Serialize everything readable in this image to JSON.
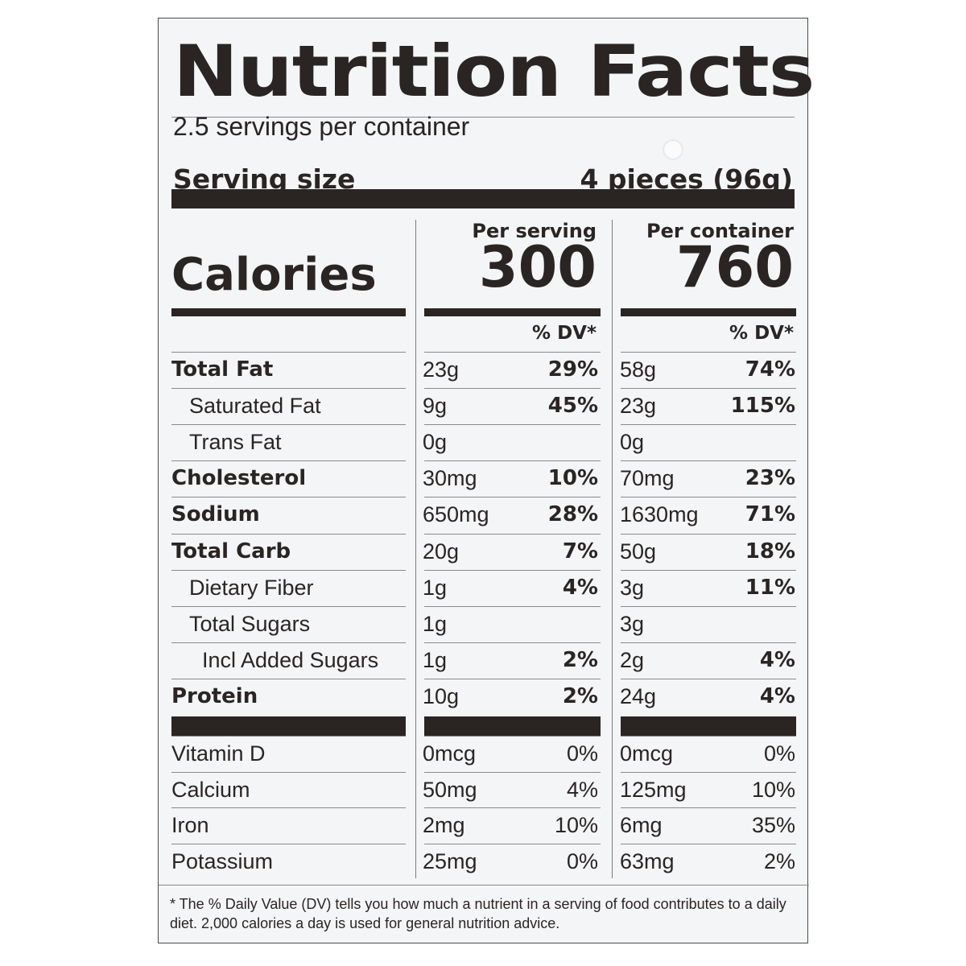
{
  "title": "Nutrition Facts",
  "servings_per_container": "2.5 servings per container",
  "serving_size_label": "Serving size",
  "serving_size_value": "4 pieces (96g)",
  "calories_label": "Calories",
  "col1": {
    "header": "Per serving",
    "calories": "300",
    "dv_header": "% DV*"
  },
  "col2": {
    "header": "Per container",
    "calories": "760",
    "dv_header": "% DV*"
  },
  "nutrients": [
    {
      "name": "Total Fat",
      "style": "bold",
      "indent": 0,
      "amt1": "23g",
      "pct1": "29%",
      "amt2": "58g",
      "pct2": "74%"
    },
    {
      "name": "Saturated Fat",
      "style": "regular",
      "indent": 1,
      "amt1": "9g",
      "pct1": "45%",
      "amt2": "23g",
      "pct2": "115%"
    },
    {
      "name": "Trans Fat",
      "style": "regular",
      "indent": 1,
      "amt1": "0g",
      "pct1": "",
      "amt2": "0g",
      "pct2": ""
    },
    {
      "name": "Cholesterol",
      "style": "bold",
      "indent": 0,
      "amt1": "30mg",
      "pct1": "10%",
      "amt2": "70mg",
      "pct2": "23%"
    },
    {
      "name": "Sodium",
      "style": "bold",
      "indent": 0,
      "amt1": "650mg",
      "pct1": "28%",
      "amt2": "1630mg",
      "pct2": "71%"
    },
    {
      "name": "Total Carb",
      "style": "bold",
      "indent": 0,
      "amt1": "20g",
      "pct1": "7%",
      "amt2": "50g",
      "pct2": "18%"
    },
    {
      "name": "Dietary Fiber",
      "style": "regular",
      "indent": 1,
      "amt1": "1g",
      "pct1": "4%",
      "amt2": "3g",
      "pct2": "11%"
    },
    {
      "name": "Total Sugars",
      "style": "regular",
      "indent": 1,
      "amt1": "1g",
      "pct1": "",
      "amt2": "3g",
      "pct2": ""
    },
    {
      "name": "Incl Added Sugars",
      "style": "regular",
      "indent": 2,
      "amt1": "1g",
      "pct1": "2%",
      "amt2": "2g",
      "pct2": "4%"
    },
    {
      "name": "Protein",
      "style": "bold",
      "indent": 0,
      "amt1": "10g",
      "pct1": "2%",
      "amt2": "24g",
      "pct2": "4%"
    }
  ],
  "vitamins": [
    {
      "name": "Vitamin D",
      "amt1": "0mcg",
      "pct1": "0%",
      "amt2": "0mcg",
      "pct2": "0%"
    },
    {
      "name": "Calcium",
      "amt1": "50mg",
      "pct1": "4%",
      "amt2": "125mg",
      "pct2": "10%"
    },
    {
      "name": "Iron",
      "amt1": "2mg",
      "pct1": "10%",
      "amt2": "6mg",
      "pct2": "35%"
    },
    {
      "name": "Potassium",
      "amt1": "25mg",
      "pct1": "0%",
      "amt2": "63mg",
      "pct2": "2%"
    }
  ],
  "footnote": "* The % Daily Value (DV) tells you how much a nutrient in a serving of food contributes to a daily diet. 2,000 calories a day is used for general nutrition advice."
}
